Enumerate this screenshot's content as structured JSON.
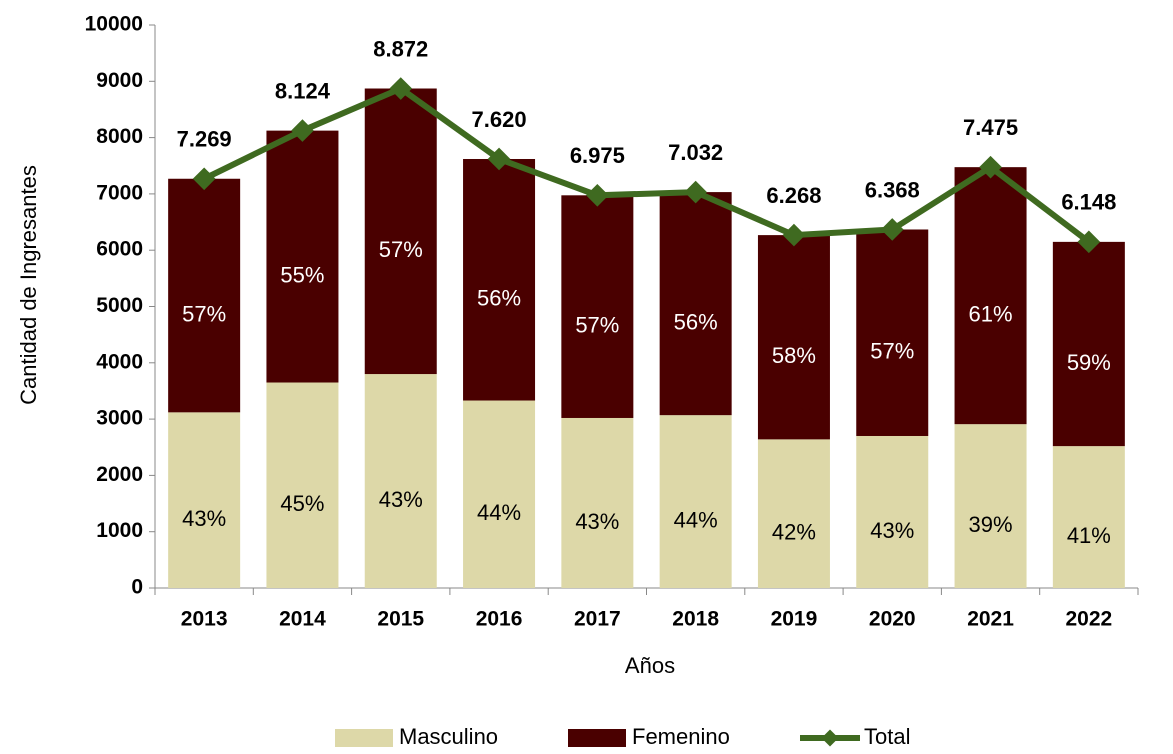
{
  "chart_data": {
    "type": "stacked_bar_line",
    "x_label": "Años",
    "y_label": "Cantidad de Ingresantes",
    "categories": [
      "2013",
      "2014",
      "2015",
      "2016",
      "2017",
      "2018",
      "2019",
      "2020",
      "2021",
      "2022"
    ],
    "series": [
      {
        "name": "Masculino",
        "color": "#ddd8a8",
        "values": [
          3120,
          3650,
          3800,
          3330,
          3020,
          3070,
          2640,
          2700,
          2910,
          2520
        ],
        "share_labels": [
          "43%",
          "45%",
          "43%",
          "44%",
          "43%",
          "44%",
          "42%",
          "43%",
          "39%",
          "41%"
        ]
      },
      {
        "name": "Femenino",
        "color": "#4a0000",
        "values": [
          4149,
          4474,
          5072,
          4290,
          3955,
          3962,
          3628,
          3668,
          4565,
          3628
        ],
        "share_labels": [
          "57%",
          "55%",
          "57%",
          "56%",
          "57%",
          "56%",
          "58%",
          "57%",
          "61%",
          "59%"
        ]
      },
      {
        "name": "Total",
        "type": "line",
        "color": "#3f6a20",
        "values": [
          7269,
          8124,
          8872,
          7620,
          6975,
          7032,
          6268,
          6368,
          7475,
          6148
        ],
        "value_labels": [
          "7.269",
          "8.124",
          "8.872",
          "7.620",
          "6.975",
          "7.032",
          "6.268",
          "6.368",
          "7.475",
          "6.148"
        ]
      }
    ],
    "ylim": [
      0,
      10000
    ],
    "yticks": [
      0,
      1000,
      2000,
      3000,
      4000,
      5000,
      6000,
      7000,
      8000,
      9000,
      10000
    ],
    "legend": "bottom"
  }
}
